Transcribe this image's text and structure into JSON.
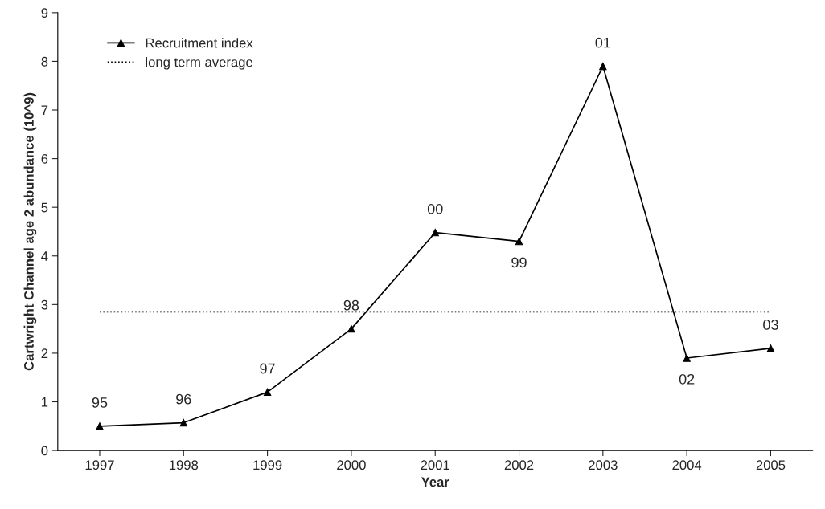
{
  "chart_data": {
    "type": "line",
    "xlabel": "Year",
    "ylabel": "Cartwright Channel age 2 abundance (10^9)",
    "categories": [
      "1997",
      "1998",
      "1999",
      "2000",
      "2001",
      "2002",
      "2003",
      "2004",
      "2005"
    ],
    "series": [
      {
        "name": "Recruitment index",
        "color": "#000000",
        "values": [
          0.5,
          0.57,
          1.2,
          2.5,
          4.48,
          4.3,
          7.9,
          1.9,
          2.1
        ]
      }
    ],
    "ref_lines": [
      {
        "axis": "y",
        "value": 2.85,
        "label": "long term average",
        "color": "#000000",
        "line_style": "dotted"
      }
    ],
    "annotations": [
      {
        "text": "95",
        "x": "1997",
        "y": 0.5
      },
      {
        "text": "96",
        "x": "1998",
        "y": 0.57
      },
      {
        "text": "97",
        "x": "1999",
        "y": 1.2
      },
      {
        "text": "98",
        "x": "2000",
        "y": 2.5
      },
      {
        "text": "00",
        "x": "2001",
        "y": 4.48
      },
      {
        "text": "99",
        "x": "2002",
        "y": 4.3
      },
      {
        "text": "01",
        "x": "2003",
        "y": 7.9
      },
      {
        "text": "02",
        "x": "2004",
        "y": 1.9
      },
      {
        "text": "03",
        "x": "2005",
        "y": 2.1
      }
    ],
    "ylim": [
      0,
      9
    ],
    "yticks": [
      0,
      1,
      2,
      3,
      4,
      5,
      6,
      7,
      8,
      9
    ],
    "marker": "triangle",
    "line_style": "solid",
    "legend": "top left",
    "grid": false
  }
}
